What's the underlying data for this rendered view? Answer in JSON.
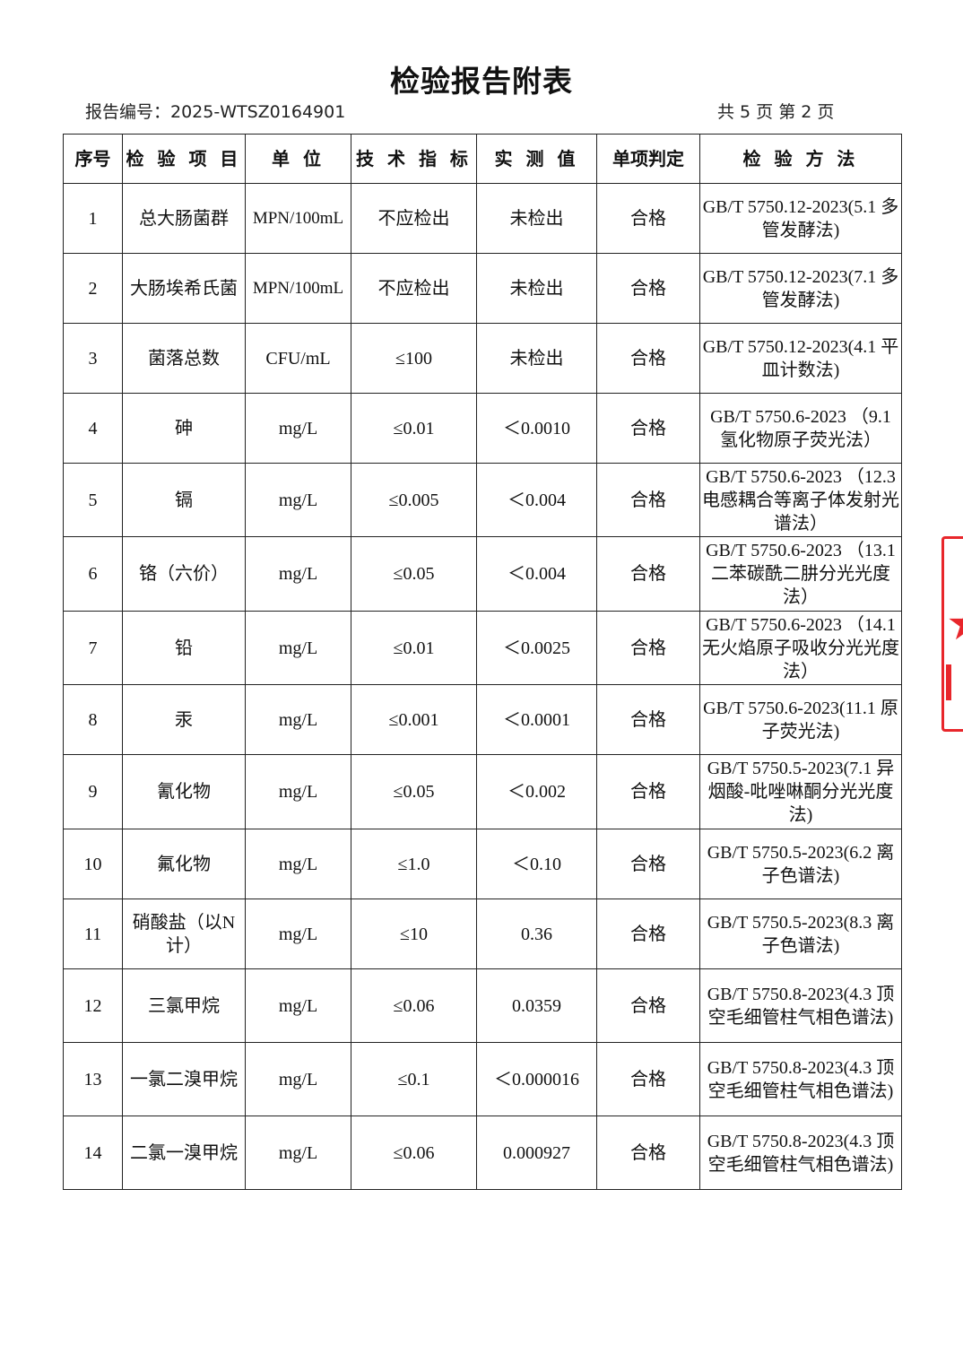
{
  "title": "检验报告附表",
  "report_no": "报告编号：2025-WTSZ0164901",
  "pages": "共 5 页  第 2 页",
  "headers": [
    "序号",
    "检 验 项 目",
    "单 位",
    "技 术 指 标",
    "实 测 值",
    "单项判定",
    "检 验 方 法"
  ],
  "rows": [
    {
      "no": "1",
      "item": "总大肠菌群",
      "unit": "MPN/100mL",
      "limit": "不应检出",
      "value": "未检出",
      "result": "合格",
      "method": "GB/T 5750.12-2023(5.1 多管发酵法)"
    },
    {
      "no": "2",
      "item": "大肠埃希氏菌",
      "unit": "MPN/100mL",
      "limit": "不应检出",
      "value": "未检出",
      "result": "合格",
      "method": "GB/T 5750.12-2023(7.1 多管发酵法)"
    },
    {
      "no": "3",
      "item": "菌落总数",
      "unit": "CFU/mL",
      "limit": "≤100",
      "value": "未检出",
      "result": "合格",
      "method": "GB/T 5750.12-2023(4.1 平皿计数法)"
    },
    {
      "no": "4",
      "item": "砷",
      "unit": "mg/L",
      "limit": "≤0.01",
      "value": "＜0.0010",
      "result": "合格",
      "method": "GB/T 5750.6-2023 （9.1 氢化物原子荧光法）"
    },
    {
      "no": "5",
      "item": "镉",
      "unit": "mg/L",
      "limit": "≤0.005",
      "value": "＜0.004",
      "result": "合格",
      "method": "GB/T 5750.6-2023 （12.3电感耦合等离子体发射光谱法）"
    },
    {
      "no": "6",
      "item": "铬（六价）",
      "unit": "mg/L",
      "limit": "≤0.05",
      "value": "＜0.004",
      "result": "合格",
      "method": "GB/T 5750.6-2023 （13.1 二苯碳酰二肼分光光度法）"
    },
    {
      "no": "7",
      "item": "铅",
      "unit": "mg/L",
      "limit": "≤0.01",
      "value": "＜0.0025",
      "result": "合格",
      "method": "GB/T 5750.6-2023 （14.1 无火焰原子吸收分光光度法）"
    },
    {
      "no": "8",
      "item": "汞",
      "unit": "mg/L",
      "limit": "≤0.001",
      "value": "＜0.0001",
      "result": "合格",
      "method": "GB/T 5750.6-2023(11.1 原子荧光法)"
    },
    {
      "no": "9",
      "item": "氰化物",
      "unit": "mg/L",
      "limit": "≤0.05",
      "value": "＜0.002",
      "result": "合格",
      "method": "GB/T 5750.5-2023(7.1 异烟酸-吡唑啉酮分光光度法)"
    },
    {
      "no": "10",
      "item": "氟化物",
      "unit": "mg/L",
      "limit": "≤1.0",
      "value": "＜0.10",
      "result": "合格",
      "method": "GB/T 5750.5-2023(6.2 离子色谱法)"
    },
    {
      "no": "11",
      "item": "硝酸盐（以N计）",
      "unit": "mg/L",
      "limit": "≤10",
      "value": "0.36",
      "result": "合格",
      "method": "GB/T 5750.5-2023(8.3 离子色谱法)"
    },
    {
      "no": "12",
      "item": "三氯甲烷",
      "unit": "mg/L",
      "limit": "≤0.06",
      "value": "0.0359",
      "result": "合格",
      "method": "GB/T 5750.8-2023(4.3 顶空毛细管柱气相色谱法)"
    },
    {
      "no": "13",
      "item": "一氯二溴甲烷",
      "unit": "mg/L",
      "limit": "≤0.1",
      "value": "＜0.000016",
      "result": "合格",
      "method": "GB/T 5750.8-2023(4.3 顶空毛细管柱气相色谱法)"
    },
    {
      "no": "14",
      "item": "二氯一溴甲烷",
      "unit": "mg/L",
      "limit": "≤0.06",
      "value": "0.000927",
      "result": "合格",
      "method": "GB/T 5750.8-2023(4.3 顶空毛细管柱气相色谱法)"
    }
  ],
  "colors": {
    "stamp": "#e8262b"
  }
}
